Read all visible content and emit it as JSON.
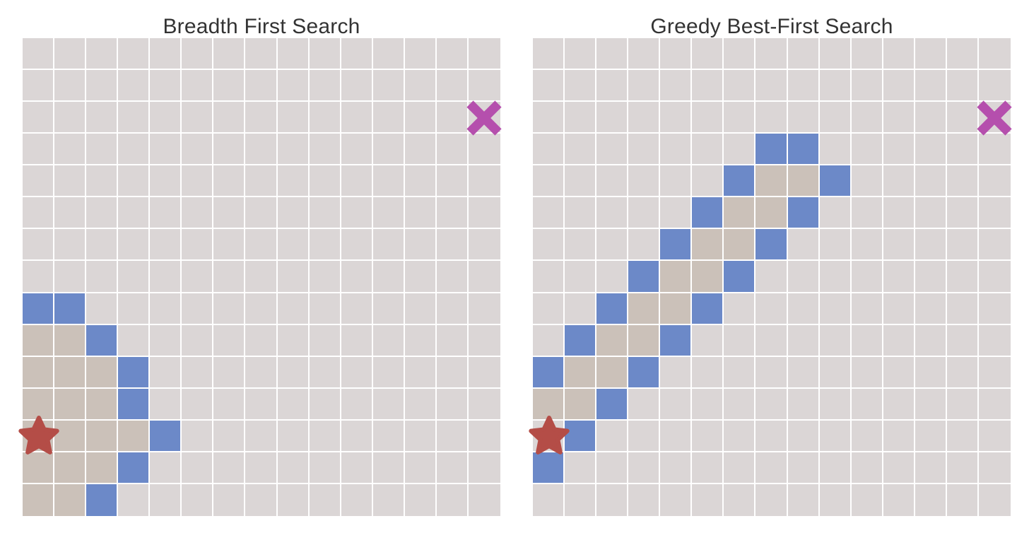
{
  "colors": {
    "empty": "#dbd6d6",
    "explored": "#cbc1b9",
    "frontier": "#6c89c8",
    "start": "#b44d47",
    "goal": "#b54fad",
    "grid_line": "#ffffff"
  },
  "icons": {
    "start": "star-icon",
    "goal": "x-cross-icon"
  },
  "panels": [
    {
      "title": "Breadth First Search",
      "grid": {
        "rows": 15,
        "cols": 15,
        "start": [
          12,
          0
        ],
        "goal": [
          2,
          14
        ],
        "frontier": [
          [
            8,
            0
          ],
          [
            8,
            1
          ],
          [
            9,
            2
          ],
          [
            10,
            3
          ],
          [
            11,
            3
          ],
          [
            12,
            4
          ],
          [
            13,
            3
          ],
          [
            14,
            2
          ]
        ],
        "explored": [
          [
            9,
            0
          ],
          [
            9,
            1
          ],
          [
            10,
            0
          ],
          [
            10,
            1
          ],
          [
            10,
            2
          ],
          [
            11,
            0
          ],
          [
            11,
            1
          ],
          [
            11,
            2
          ],
          [
            12,
            0
          ],
          [
            12,
            1
          ],
          [
            12,
            2
          ],
          [
            12,
            3
          ],
          [
            13,
            0
          ],
          [
            13,
            1
          ],
          [
            13,
            2
          ],
          [
            14,
            0
          ],
          [
            14,
            1
          ]
        ]
      }
    },
    {
      "title": "Greedy Best-First Search",
      "grid": {
        "rows": 15,
        "cols": 15,
        "start": [
          12,
          0
        ],
        "goal": [
          2,
          14
        ],
        "frontier": [
          [
            3,
            7
          ],
          [
            3,
            8
          ],
          [
            4,
            6
          ],
          [
            4,
            9
          ],
          [
            5,
            5
          ],
          [
            5,
            8
          ],
          [
            6,
            4
          ],
          [
            6,
            7
          ],
          [
            7,
            3
          ],
          [
            7,
            6
          ],
          [
            8,
            2
          ],
          [
            8,
            5
          ],
          [
            9,
            1
          ],
          [
            9,
            4
          ],
          [
            10,
            0
          ],
          [
            10,
            3
          ],
          [
            11,
            2
          ],
          [
            12,
            1
          ],
          [
            13,
            0
          ]
        ],
        "explored": [
          [
            4,
            7
          ],
          [
            4,
            8
          ],
          [
            5,
            6
          ],
          [
            5,
            7
          ],
          [
            6,
            5
          ],
          [
            6,
            6
          ],
          [
            7,
            4
          ],
          [
            7,
            5
          ],
          [
            8,
            3
          ],
          [
            8,
            4
          ],
          [
            9,
            2
          ],
          [
            9,
            3
          ],
          [
            10,
            1
          ],
          [
            10,
            2
          ],
          [
            11,
            0
          ],
          [
            11,
            1
          ]
        ]
      }
    }
  ]
}
